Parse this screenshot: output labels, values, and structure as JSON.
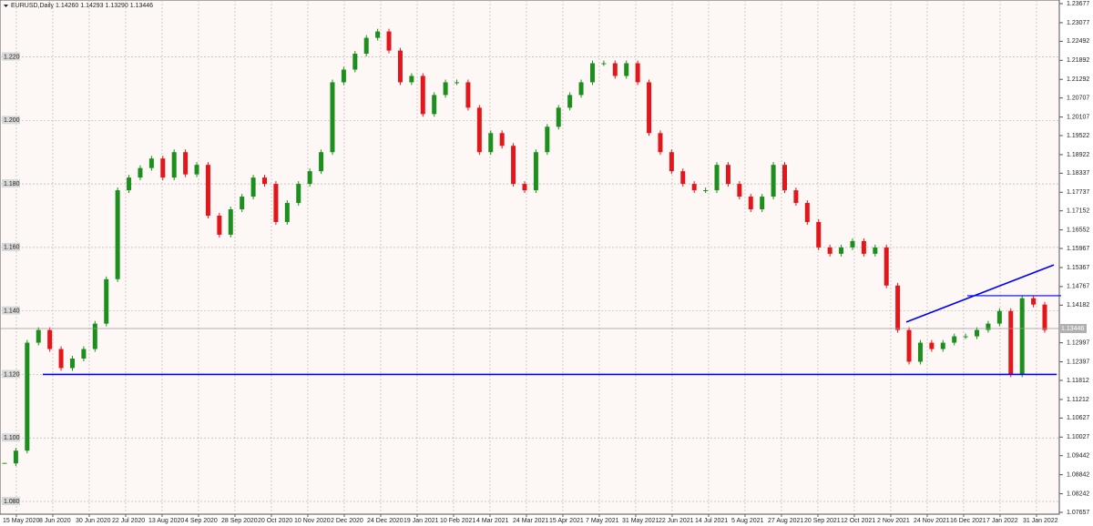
{
  "chart_data": {
    "type": "candlestick",
    "title": "EURUSD,Daily  1.14260 1.14293 1.13290 1.13446",
    "series": [
      {
        "name": "EURUSD",
        "up_color": "#1d8f1d",
        "down_color": "#e3171b",
        "values": [
          1.092,
          1.096,
          1.13,
          1.134,
          1.128,
          1.122,
          1.125,
          1.128,
          1.136,
          1.15,
          1.178,
          1.182,
          1.185,
          1.188,
          1.182,
          1.19,
          1.183,
          1.186,
          1.17,
          1.164,
          1.172,
          1.176,
          1.182,
          1.18,
          1.168,
          1.174,
          1.18,
          1.184,
          1.19,
          1.212,
          1.216,
          1.221,
          1.226,
          1.228,
          1.222,
          1.212,
          1.214,
          1.202,
          1.208,
          1.212,
          1.212,
          1.204,
          1.19,
          1.196,
          1.192,
          1.18,
          1.178,
          1.19,
          1.198,
          1.204,
          1.208,
          1.212,
          1.218,
          1.218,
          1.214,
          1.218,
          1.212,
          1.196,
          1.19,
          1.184,
          1.18,
          1.178,
          1.178,
          1.186,
          1.18,
          1.176,
          1.172,
          1.176,
          1.186,
          1.178,
          1.174,
          1.168,
          1.16,
          1.158,
          1.16,
          1.162,
          1.158,
          1.16,
          1.148,
          1.134,
          1.124,
          1.13,
          1.128,
          1.13,
          1.132,
          1.132,
          1.134,
          1.136,
          1.14,
          1.12,
          1.144,
          1.142,
          1.134
        ]
      }
    ],
    "ylim": [
      1.07657,
      1.23677
    ],
    "yticks": [
      1.23677,
      1.23077,
      1.22492,
      1.21892,
      1.21292,
      1.20707,
      1.20107,
      1.19522,
      1.18922,
      1.18337,
      1.17737,
      1.17152,
      1.16552,
      1.15967,
      1.15367,
      1.14767,
      1.14182,
      1.12997,
      1.12397,
      1.11812,
      1.11212,
      1.10627,
      1.10027,
      1.09442,
      1.08842,
      1.08242,
      1.07657
    ],
    "grid_levels": [
      {
        "value": 1.22,
        "label": "1.220"
      },
      {
        "value": 1.2,
        "label": "1.200"
      },
      {
        "value": 1.18,
        "label": "1.180"
      },
      {
        "value": 1.16,
        "label": "1.160"
      },
      {
        "value": 1.14,
        "label": "1.140"
      },
      {
        "value": 1.12,
        "label": "1.120"
      },
      {
        "value": 1.1,
        "label": "1.100"
      },
      {
        "value": 1.08,
        "label": "1.080"
      }
    ],
    "xticks": [
      "15 May 2020",
      "8 Jun 2020",
      "30 Jun 2020",
      "22 Jul 2020",
      "13 Aug 2020",
      "4 Sep 2020",
      "28 Sep 2020",
      "20 Oct 2020",
      "10 Nov 2020",
      "2 Dec 2020",
      "24 Dec 2020",
      "19 Jan 2021",
      "10 Feb 2021",
      "4 Mar 2021",
      "24 Mar 2021",
      "15 Apr 2021",
      "7 May 2021",
      "31 May 2021",
      "22 Jun 2021",
      "14 Jul 2021",
      "5 Aug 2021",
      "27 Aug 2021",
      "20 Sep 2021",
      "12 Oct 2021",
      "2 Nov 2021",
      "24 Nov 2021",
      "16 Dec 2021",
      "7 Jan 2022",
      "31 Jan 2022"
    ],
    "current_price": 1.13446,
    "support_level": 1.12,
    "resistance_level": 1.1448,
    "trendline": [
      1.1365,
      1.1545
    ],
    "line_color": "#0000ff",
    "grid": true
  }
}
